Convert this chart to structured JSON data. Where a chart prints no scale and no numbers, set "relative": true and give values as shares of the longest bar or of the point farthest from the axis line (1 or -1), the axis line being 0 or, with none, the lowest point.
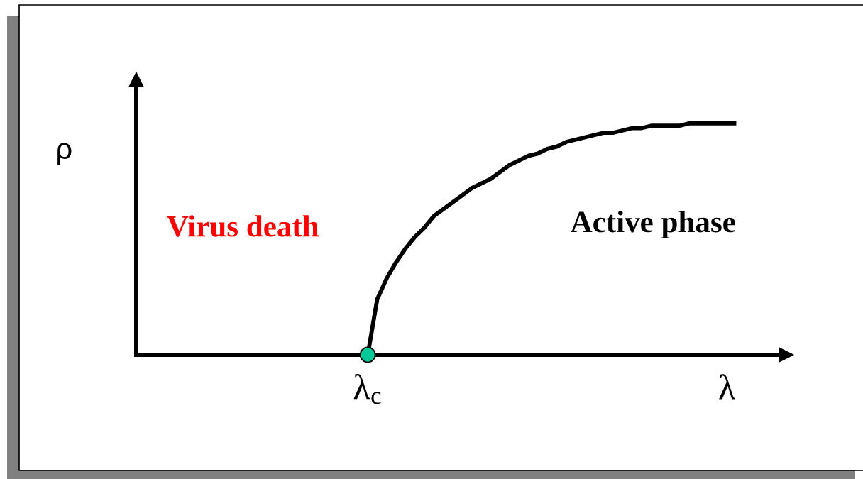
{
  "chart_data": {
    "type": "line",
    "relative": true,
    "ylabel": "ρ",
    "categories": [
      null,
      null,
      null,
      null,
      null,
      null,
      null,
      null,
      null,
      null,
      null,
      null,
      null,
      null,
      null,
      null,
      null,
      null,
      null,
      null,
      null,
      null,
      null,
      null,
      "λ$_{c}$",
      null,
      null,
      null,
      null,
      null,
      null,
      null,
      null,
      null,
      null,
      null,
      null,
      null,
      null,
      null,
      null,
      null,
      null,
      null,
      null,
      null,
      null,
      null,
      null,
      null,
      null,
      null,
      null,
      null,
      null,
      null,
      null,
      null,
      null,
      null,
      null,
      null,
      "λ",
      null
    ],
    "series": [
      {
        "color": "#000000",
        "values": [
          null,
          null,
          null,
          null,
          null,
          null,
          null,
          null,
          null,
          null,
          null,
          null,
          null,
          null,
          null,
          null,
          null,
          null,
          null,
          null,
          null,
          null,
          null,
          null,
          0,
          0.24,
          0.33,
          0.4,
          0.46,
          0.51,
          0.55,
          0.6,
          0.63,
          0.66,
          0.69,
          0.72,
          0.74,
          0.76,
          0.79,
          0.82,
          0.84,
          0.86,
          0.87,
          0.89,
          0.9,
          0.92,
          0.93,
          0.94,
          0.95,
          0.96,
          0.96,
          0.97,
          0.98,
          0.98,
          0.99,
          0.99,
          0.99,
          0.99,
          1.0,
          1.0,
          1.0,
          1.0,
          1.0,
          1.0
        ]
      },
      {
        "type": "scatter",
        "color": "#00c896",
        "marker": "circle",
        "values": [
          null,
          null,
          null,
          null,
          null,
          null,
          null,
          null,
          null,
          null,
          null,
          null,
          null,
          null,
          null,
          null,
          null,
          null,
          null,
          null,
          null,
          null,
          null,
          null,
          0,
          null,
          null,
          null,
          null,
          null,
          null,
          null,
          null,
          null,
          null,
          null,
          null,
          null,
          null,
          null,
          null,
          null,
          null,
          null,
          null,
          null,
          null,
          null,
          null,
          null,
          null,
          null,
          null,
          null,
          null,
          null,
          null,
          null,
          null,
          null,
          null,
          null,
          null,
          null
        ]
      }
    ],
    "annotations": [
      "Virus death",
      "Active phase"
    ]
  }
}
